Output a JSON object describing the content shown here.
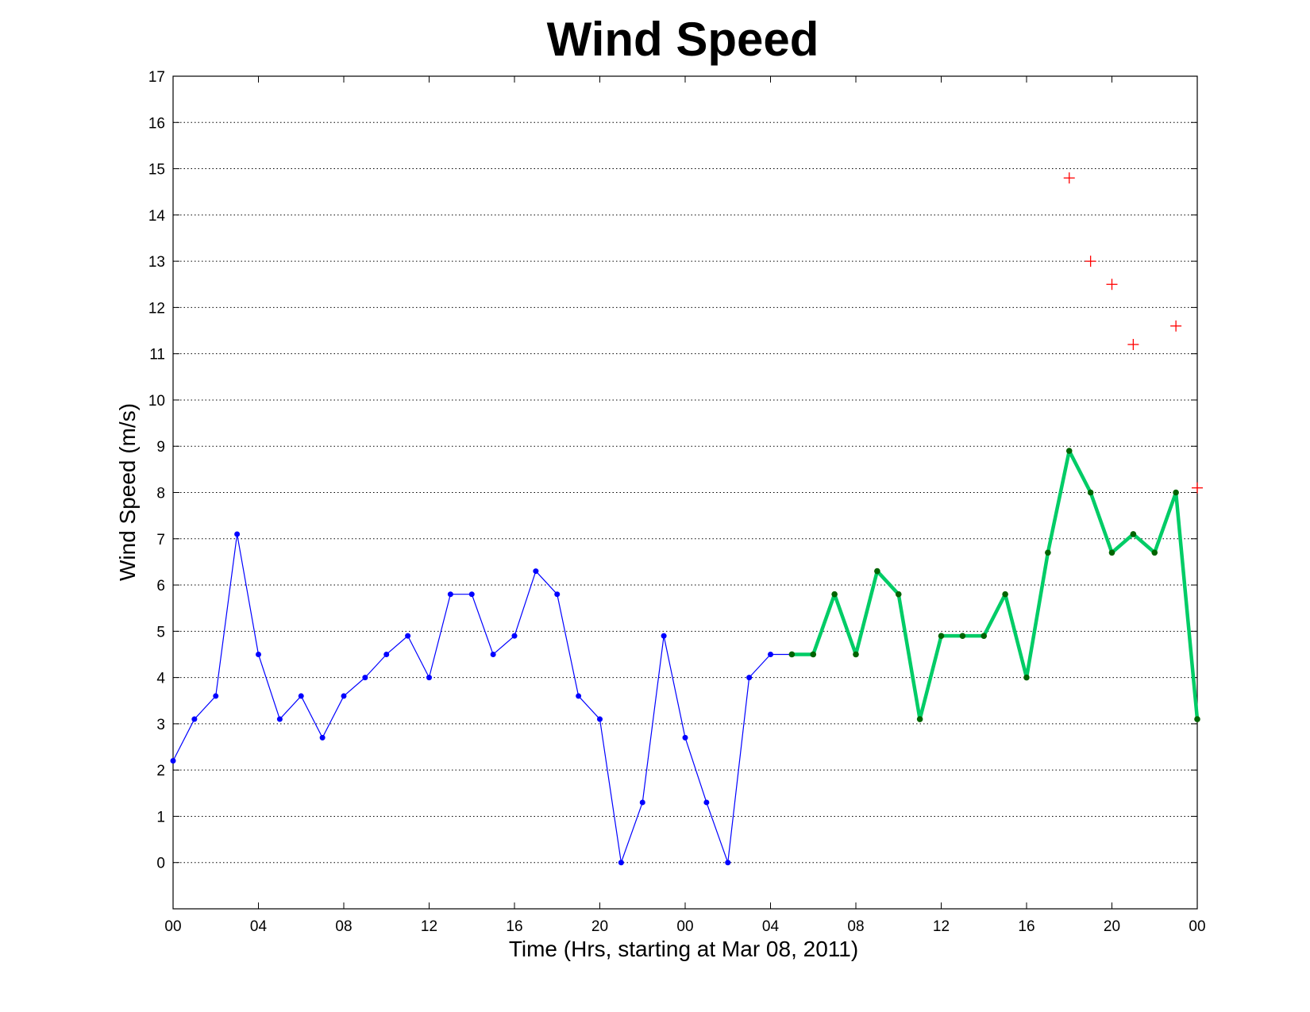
{
  "chart_data": {
    "type": "line",
    "title": "Wind Speed",
    "xlabel": "Time (Hrs, starting at Mar 08, 2011)",
    "ylabel": "Wind Speed (m/s)",
    "xlim": [
      0,
      48
    ],
    "ylim": [
      -1,
      17
    ],
    "grid": "y-dotted",
    "x_ticks": [
      {
        "x": 0,
        "label": "00"
      },
      {
        "x": 4,
        "label": "04"
      },
      {
        "x": 8,
        "label": "08"
      },
      {
        "x": 12,
        "label": "12"
      },
      {
        "x": 16,
        "label": "16"
      },
      {
        "x": 20,
        "label": "20"
      },
      {
        "x": 24,
        "label": "00"
      },
      {
        "x": 28,
        "label": "04"
      },
      {
        "x": 32,
        "label": "08"
      },
      {
        "x": 36,
        "label": "12"
      },
      {
        "x": 40,
        "label": "16"
      },
      {
        "x": 44,
        "label": "20"
      },
      {
        "x": 48,
        "label": "00"
      }
    ],
    "y_ticks": [
      0,
      1,
      2,
      3,
      4,
      5,
      6,
      7,
      8,
      9,
      10,
      11,
      12,
      13,
      14,
      15,
      16,
      17
    ],
    "series": [
      {
        "color": "#0000ff",
        "style": "thin-line-dots",
        "x": [
          0,
          1,
          2,
          3,
          4,
          5,
          6,
          7,
          8,
          9,
          10,
          11,
          12,
          13,
          14,
          15,
          16,
          17,
          18,
          19,
          20,
          21,
          22,
          23,
          24,
          25,
          26,
          27,
          28,
          29
        ],
        "values": [
          2.2,
          3.1,
          3.6,
          7.1,
          4.5,
          3.1,
          3.6,
          2.7,
          3.6,
          4.0,
          4.5,
          4.9,
          4.0,
          5.8,
          5.8,
          4.5,
          4.9,
          6.3,
          5.8,
          3.6,
          3.1,
          0.0,
          1.3,
          4.9,
          2.7,
          1.3,
          0.0,
          4.0,
          4.5,
          4.5
        ]
      },
      {
        "color": "#00cc66",
        "style": "thick-line-dots",
        "x": [
          29,
          30,
          31,
          32,
          33,
          34,
          35,
          36,
          37,
          38,
          39,
          40,
          41,
          42,
          43,
          44,
          45,
          46,
          47,
          48
        ],
        "values": [
          4.5,
          4.5,
          5.8,
          4.5,
          6.3,
          5.8,
          3.1,
          4.9,
          4.9,
          4.9,
          5.8,
          4.0,
          6.7,
          8.9,
          8.0,
          6.7,
          7.1,
          6.7,
          8.0,
          3.1
        ]
      },
      {
        "color": "#ff0000",
        "style": "plus-markers",
        "x": [
          42,
          43,
          44,
          45,
          47,
          48
        ],
        "values": [
          14.8,
          13.0,
          12.5,
          11.2,
          11.6,
          8.1
        ]
      }
    ]
  }
}
